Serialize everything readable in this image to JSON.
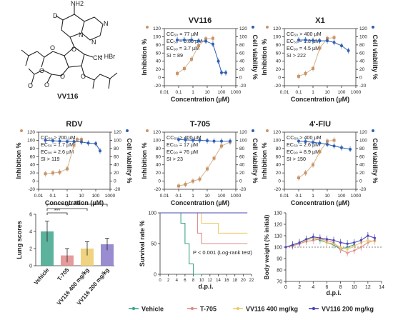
{
  "molecule": {
    "name": "VV116",
    "salt": "• HBr",
    "atoms": [
      "D",
      "NH2",
      "N",
      "N",
      "N",
      "O",
      "O",
      "O",
      "O",
      "O",
      "O",
      "O",
      "CN"
    ]
  },
  "colors": {
    "inhibition": "#c8956a",
    "viability": "#2e5fb3",
    "fit_inh": "#d6b48e",
    "fit_via": "#2e5fb3"
  },
  "chart_data": [
    {
      "type": "scatter",
      "title": "VV116",
      "xlabel": "Concentration (µM)",
      "ylabel": "Inhibition %",
      "y2label": "Cell viability %",
      "xscale": "log",
      "xlim": [
        0.01,
        1000
      ],
      "ylim": [
        -20,
        120
      ],
      "xticks": [
        "0.01",
        "0.1",
        "1",
        "10",
        "100",
        "1000"
      ],
      "yticks": [
        "-20",
        "0",
        "20",
        "40",
        "60",
        "80",
        "100",
        "120"
      ],
      "annotations": [
        "CC₅₀ = 77 µM",
        "EC₅₀ = 0.86 µM",
        "EC₉₀ = 3.7 µM",
        "SI = 89"
      ],
      "series": [
        {
          "x": [
            0.08,
            0.25,
            0.8,
            2.5,
            8,
            25
          ],
          "y": [
            10,
            22,
            45,
            78,
            95,
            96
          ]
        },
        {
          "x": [
            0.08,
            0.25,
            0.8,
            2.5,
            8,
            25,
            60,
            100,
            200
          ],
          "y": [
            92,
            92,
            92,
            90,
            89,
            82,
            40,
            12,
            12
          ]
        }
      ]
    },
    {
      "type": "scatter",
      "title": "X1",
      "xlabel": "Concentration (µM)",
      "ylabel": "Inhibition %",
      "y2label": "Cell viability %",
      "xscale": "log",
      "xlim": [
        0.01,
        1000
      ],
      "ylim": [
        -20,
        120
      ],
      "xticks": [
        "0.01",
        "0.1",
        "1",
        "10",
        "100",
        "1000"
      ],
      "yticks": [
        "-20",
        "0",
        "20",
        "40",
        "60",
        "80",
        "100",
        "120"
      ],
      "annotations": [
        "CC₅₀ > 400 µM",
        "EC₅₀ = 1.8 µM",
        "EC₉₀ = 4.5 µM",
        "SI > 222"
      ],
      "series": [
        {
          "x": [
            0.1,
            0.3,
            1,
            3,
            10,
            30
          ],
          "y": [
            3,
            10,
            22,
            72,
            96,
            98
          ]
        },
        {
          "x": [
            0.1,
            0.3,
            1,
            3,
            10,
            30,
            100,
            300
          ],
          "y": [
            92,
            92,
            91,
            90,
            90,
            86,
            78,
            66
          ]
        }
      ]
    },
    {
      "type": "scatter",
      "title": "RDV",
      "xlabel": "Concentration (µM)",
      "ylabel": "Inhibition %",
      "y2label": "Cell viability %",
      "xscale": "log",
      "xlim": [
        0.01,
        1000
      ],
      "ylim": [
        -20,
        120
      ],
      "xticks": [
        "0.01",
        "0.1",
        "1",
        "10",
        "100",
        "1000"
      ],
      "yticks": [
        "-20",
        "0",
        "20",
        "40",
        "60",
        "80",
        "100",
        "120"
      ],
      "annotations": [
        "CC₅₀ > 200 µM",
        "EC₅₀ = 1.7 µM",
        "EC₉₀ = 2.6 µM",
        "SI > 119"
      ],
      "series": [
        {
          "x": [
            0.03,
            0.1,
            0.3,
            1,
            3,
            5,
            10
          ],
          "y": [
            18,
            20,
            22,
            30,
            88,
            102,
            102
          ]
        },
        {
          "x": [
            0.03,
            0.1,
            0.3,
            1,
            3,
            10,
            30,
            100,
            200
          ],
          "y": [
            100,
            99,
            98,
            97,
            97,
            96,
            93,
            92,
            74
          ]
        }
      ]
    },
    {
      "type": "scatter",
      "title": "T-705",
      "xlabel": "Concentration (µM)",
      "ylabel": "Inhibition %",
      "y2label": "Cell viability %",
      "xscale": "log",
      "xlim": [
        0.01,
        1000
      ],
      "ylim": [
        -20,
        120
      ],
      "xticks": [
        "0.01",
        "0.1",
        "1",
        "10",
        "100",
        "1000"
      ],
      "yticks": [
        "-20",
        "0",
        "20",
        "40",
        "60",
        "80",
        "100",
        "120"
      ],
      "annotations": [
        "CC₅₀ > 400 µM",
        "EC₅₀ = 17 µM",
        "EC₉₀ = 76 µM",
        "SI > 23"
      ],
      "series": [
        {
          "x": [
            0.1,
            0.3,
            1,
            3,
            10,
            30,
            100,
            400
          ],
          "y": [
            -12,
            -8,
            0,
            5,
            30,
            56,
            86,
            96
          ]
        },
        {
          "x": [
            0.1,
            0.3,
            1,
            3,
            10,
            30,
            100,
            400
          ],
          "y": [
            102,
            101,
            100,
            100,
            99,
            98,
            98,
            98
          ]
        }
      ]
    },
    {
      "type": "scatter",
      "title": "4'-FlU",
      "xlabel": "Concentration (µM)",
      "ylabel": "Inhibition %",
      "y2label": "Cell viability %",
      "xscale": "log",
      "xlim": [
        0.01,
        1000
      ],
      "ylim": [
        -20,
        120
      ],
      "xticks": [
        "0.01",
        "0.1",
        "1",
        "10",
        "100",
        "1000"
      ],
      "yticks": [
        "-20",
        "0",
        "20",
        "40",
        "60",
        "80",
        "100",
        "120"
      ],
      "annotations": [
        "CC₅₀ > 400 µM",
        "EC₅₀ = 2.6 µM",
        "EC₉₀ = 8.9 µM",
        "SI > 150"
      ],
      "series": [
        {
          "x": [
            0.1,
            0.3,
            1,
            3,
            10,
            30
          ],
          "y": [
            8,
            20,
            40,
            72,
            98,
            100
          ]
        },
        {
          "x": [
            0.1,
            0.3,
            1,
            3,
            10,
            30,
            100,
            400
          ],
          "y": [
            98,
            97,
            95,
            93,
            90,
            86,
            82,
            78
          ]
        }
      ]
    },
    {
      "type": "bar",
      "ylabel": "Lung scores",
      "ylim": [
        0,
        6
      ],
      "categories": [
        "Vehicle",
        "T-705",
        "VV116 400 mg/kg",
        "VV116 200 mg/kg"
      ],
      "values": [
        4.0,
        1.2,
        2.0,
        2.5
      ],
      "errors": [
        1.2,
        0.8,
        0.8,
        0.7
      ],
      "yticks": [
        "0",
        "2",
        "4",
        "6"
      ],
      "significance": [
        "ns",
        "**",
        "***"
      ],
      "colors": [
        "#3fa58c",
        "#e08a8a",
        "#eccb6a",
        "#8878c8"
      ]
    },
    {
      "type": "line",
      "ylabel": "Survival rate %",
      "xlabel": "d.p.i.",
      "xlim": [
        0,
        22
      ],
      "ylim": [
        0,
        100
      ],
      "xticks": [
        "0",
        "2",
        "4",
        "6",
        "8",
        "10",
        "12",
        "14",
        "16",
        "18",
        "20",
        "22"
      ],
      "yticks": [
        "0",
        "50",
        "100"
      ],
      "annotation": "P < 0.001 (Log-rank test)",
      "series": [
        {
          "x": [
            0,
            5,
            5,
            6,
            6,
            7,
            7,
            8,
            8,
            10
          ],
          "y": [
            100,
            100,
            83,
            83,
            50,
            50,
            17,
            17,
            0,
            0
          ]
        },
        {
          "x": [
            0,
            9,
            9,
            10,
            10,
            21
          ],
          "y": [
            100,
            100,
            67,
            67,
            50,
            50
          ]
        },
        {
          "x": [
            0,
            10,
            10,
            14,
            14,
            21
          ],
          "y": [
            100,
            100,
            83,
            83,
            67,
            67
          ]
        },
        {
          "x": [
            0,
            21
          ],
          "y": [
            100,
            100
          ]
        }
      ],
      "colors": [
        "#3fa58c",
        "#e08a8a",
        "#eccb6a",
        "#4a48b8"
      ]
    },
    {
      "type": "line",
      "ylabel": "Body weight (% initial)",
      "xlabel": "d.p.i.",
      "xlim": [
        0,
        14
      ],
      "ylim": [
        70,
        130
      ],
      "xticks": [
        "0",
        "2",
        "4",
        "6",
        "8",
        "10",
        "12",
        "14"
      ],
      "yticks": [
        "70",
        "80",
        "90",
        "100",
        "110",
        "120",
        "130"
      ],
      "series": [
        {
          "x": [
            0,
            1,
            2,
            3,
            4,
            5,
            6,
            7,
            8,
            9,
            10
          ],
          "y": [
            100,
            102,
            104,
            106,
            108,
            106,
            104,
            102,
            98,
            100,
            102
          ]
        },
        {
          "x": [
            0,
            1,
            2,
            3,
            4,
            5,
            6,
            7,
            8,
            9,
            10,
            11,
            12,
            13
          ],
          "y": [
            100,
            101,
            103,
            105,
            106,
            107,
            106,
            104,
            98,
            95,
            97,
            100,
            104,
            106
          ]
        },
        {
          "x": [
            0,
            1,
            2,
            3,
            4,
            5,
            6,
            7,
            8,
            9,
            10,
            11,
            12,
            13
          ],
          "y": [
            100,
            102,
            104,
            106,
            108,
            107,
            104,
            103,
            100,
            98,
            101,
            104,
            106,
            105
          ]
        },
        {
          "x": [
            0,
            1,
            2,
            3,
            4,
            5,
            6,
            7,
            8,
            9,
            10,
            11,
            12,
            13
          ],
          "y": [
            100,
            102,
            104,
            107,
            109,
            108,
            107,
            106,
            104,
            103,
            104,
            106,
            110,
            108
          ]
        }
      ],
      "colors": [
        "#3fa58c",
        "#e08a8a",
        "#eccb6a",
        "#4a48b8"
      ]
    }
  ],
  "legend": [
    {
      "label": "Vehicle",
      "color": "#3fa58c"
    },
    {
      "label": "T-705",
      "color": "#e08a8a"
    },
    {
      "label": "VV116 400 mg/kg",
      "color": "#eccb6a"
    },
    {
      "label": "VV116 200 mg/kg",
      "color": "#4a48b8"
    }
  ]
}
